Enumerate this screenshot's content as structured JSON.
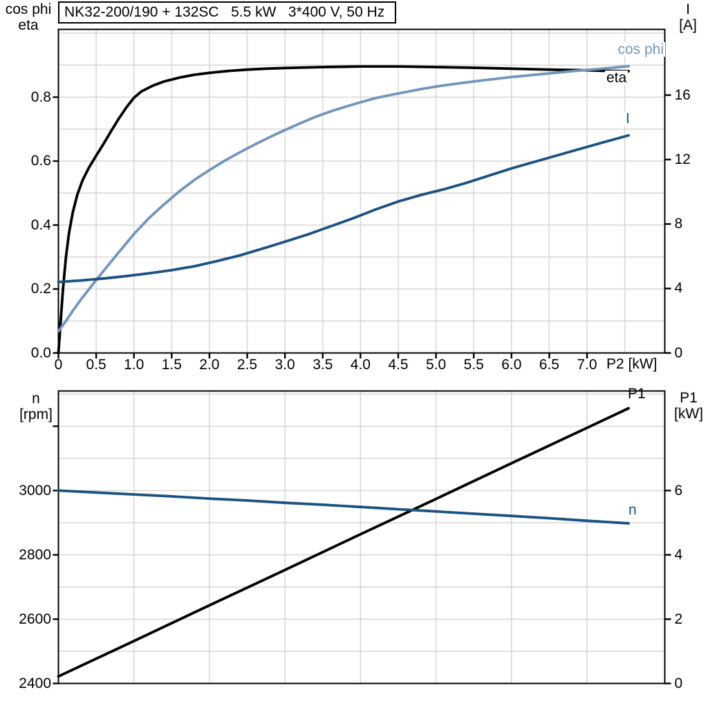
{
  "colors": {
    "curve_black": "#000000",
    "curve_light_blue": "#7495ba",
    "curve_dark_blue": "#1b5282",
    "grid": "#d7d7d7",
    "axis": "#000000",
    "background": "#ffffff"
  },
  "chart_data": [
    {
      "id": "upper",
      "type": "line",
      "title": "NK32-200/190 + 132SC   5.5 kW   3*400 V, 50 Hz",
      "x_axis": {
        "label": "P2 [kW]",
        "min": 0,
        "max": 8.03,
        "grid_step": 0.5,
        "grid_max": 7.5,
        "ticks": [
          {
            "v": 0,
            "label": "0"
          },
          {
            "v": 0.5,
            "label": "0.5"
          },
          {
            "v": 1,
            "label": "1.0"
          },
          {
            "v": 1.5,
            "label": "1.5"
          },
          {
            "v": 2,
            "label": "2.0"
          },
          {
            "v": 2.5,
            "label": "2.5"
          },
          {
            "v": 3,
            "label": "3.0"
          },
          {
            "v": 3.5,
            "label": "3.5"
          },
          {
            "v": 4,
            "label": "4.0"
          },
          {
            "v": 4.5,
            "label": "4.5"
          },
          {
            "v": 5,
            "label": "5.0"
          },
          {
            "v": 5.5,
            "label": "5.5"
          },
          {
            "v": 6,
            "label": "6.0"
          },
          {
            "v": 6.5,
            "label": "6.5"
          },
          {
            "v": 7,
            "label": "7.0"
          }
        ]
      },
      "left_axis": {
        "label1": "cos phi",
        "label2": "eta",
        "min": 0,
        "max": 1.0119,
        "grid_step": 0.1,
        "grid_max": 1.0,
        "ticks": [
          {
            "v": 0,
            "label": "0.0"
          },
          {
            "v": 0.2,
            "label": "0.2"
          },
          {
            "v": 0.4,
            "label": "0.4"
          },
          {
            "v": 0.6,
            "label": "0.6"
          },
          {
            "v": 0.8,
            "label": "0.8"
          }
        ]
      },
      "right_axis": {
        "label1": "I",
        "label2": "[A]",
        "min": 0,
        "max": 20.075,
        "ticks": [
          {
            "v": 0,
            "label": "0"
          },
          {
            "v": 4,
            "label": "4"
          },
          {
            "v": 8,
            "label": "8"
          },
          {
            "v": 12,
            "label": "12"
          },
          {
            "v": 16,
            "label": "16"
          }
        ]
      },
      "series": [
        {
          "name": "eta",
          "label": "eta",
          "axis": "left",
          "color": "#000000",
          "points": [
            [
              0,
              0
            ],
            [
              0.03,
              0.1
            ],
            [
              0.06,
              0.2
            ],
            [
              0.1,
              0.3
            ],
            [
              0.14,
              0.375
            ],
            [
              0.19,
              0.44
            ],
            [
              0.25,
              0.495
            ],
            [
              0.32,
              0.54
            ],
            [
              0.4,
              0.578
            ],
            [
              0.5,
              0.617
            ],
            [
              0.6,
              0.655
            ],
            [
              0.7,
              0.695
            ],
            [
              0.8,
              0.733
            ],
            [
              0.9,
              0.768
            ],
            [
              1,
              0.798
            ],
            [
              1.1,
              0.818
            ],
            [
              1.25,
              0.836
            ],
            [
              1.4,
              0.849
            ],
            [
              1.6,
              0.861
            ],
            [
              1.8,
              0.87
            ],
            [
              2,
              0.876
            ],
            [
              2.25,
              0.882
            ],
            [
              2.5,
              0.886
            ],
            [
              2.75,
              0.889
            ],
            [
              3,
              0.891
            ],
            [
              3.5,
              0.894
            ],
            [
              4,
              0.896
            ],
            [
              4.5,
              0.896
            ],
            [
              5,
              0.894
            ],
            [
              5.5,
              0.892
            ],
            [
              6,
              0.889
            ],
            [
              6.5,
              0.886
            ],
            [
              7,
              0.884
            ],
            [
              7.3,
              0.882
            ],
            [
              7.55,
              0.881
            ]
          ]
        },
        {
          "name": "cos_phi",
          "label": "cos phi",
          "axis": "left",
          "color": "#7495ba",
          "points": [
            [
              0,
              0.068
            ],
            [
              0.1,
              0.1
            ],
            [
              0.2,
              0.135
            ],
            [
              0.3,
              0.168
            ],
            [
              0.4,
              0.198
            ],
            [
              0.5,
              0.228
            ],
            [
              0.65,
              0.272
            ],
            [
              0.8,
              0.315
            ],
            [
              1,
              0.372
            ],
            [
              1.2,
              0.422
            ],
            [
              1.4,
              0.465
            ],
            [
              1.6,
              0.505
            ],
            [
              1.8,
              0.541
            ],
            [
              2,
              0.572
            ],
            [
              2.2,
              0.601
            ],
            [
              2.4,
              0.627
            ],
            [
              2.6,
              0.652
            ],
            [
              2.8,
              0.675
            ],
            [
              3,
              0.697
            ],
            [
              3.2,
              0.718
            ],
            [
              3.4,
              0.738
            ],
            [
              3.6,
              0.755
            ],
            [
              3.8,
              0.77
            ],
            [
              4,
              0.784
            ],
            [
              4.2,
              0.797
            ],
            [
              4.4,
              0.807
            ],
            [
              4.6,
              0.816
            ],
            [
              4.8,
              0.825
            ],
            [
              5,
              0.833
            ],
            [
              5.3,
              0.843
            ],
            [
              5.6,
              0.852
            ],
            [
              6,
              0.863
            ],
            [
              6.4,
              0.872
            ],
            [
              6.8,
              0.881
            ],
            [
              7.1,
              0.887
            ],
            [
              7.3,
              0.891
            ],
            [
              7.55,
              0.897
            ]
          ]
        },
        {
          "name": "current",
          "label": "I",
          "axis": "right",
          "color": "#1b5282",
          "points": [
            [
              0,
              4.4
            ],
            [
              0.3,
              4.5
            ],
            [
              0.6,
              4.62
            ],
            [
              0.9,
              4.77
            ],
            [
              1.2,
              4.94
            ],
            [
              1.5,
              5.14
            ],
            [
              1.8,
              5.38
            ],
            [
              2.1,
              5.7
            ],
            [
              2.4,
              6.05
            ],
            [
              2.7,
              6.47
            ],
            [
              3,
              6.9
            ],
            [
              3.3,
              7.35
            ],
            [
              3.6,
              7.85
            ],
            [
              3.9,
              8.35
            ],
            [
              4.2,
              8.9
            ],
            [
              4.5,
              9.4
            ],
            [
              4.8,
              9.8
            ],
            [
              5.1,
              10.15
            ],
            [
              5.4,
              10.55
            ],
            [
              5.7,
              11
            ],
            [
              6,
              11.45
            ],
            [
              6.3,
              11.85
            ],
            [
              6.6,
              12.25
            ],
            [
              6.9,
              12.65
            ],
            [
              7.2,
              13.05
            ],
            [
              7.55,
              13.5
            ]
          ]
        }
      ]
    },
    {
      "id": "lower",
      "type": "line",
      "title": "",
      "x_axis": {
        "label": "",
        "min": 0,
        "max": 8.03,
        "grid_step": 1,
        "grid_max": 7,
        "ticks": []
      },
      "left_axis": {
        "label1": "n",
        "label2": "[rpm]",
        "min": 2400,
        "max": 3309.7,
        "grid_step": 100,
        "grid_max": 3300,
        "ticks": [
          {
            "v": 2400,
            "label": "2400"
          },
          {
            "v": 2600,
            "label": "2600"
          },
          {
            "v": 2800,
            "label": "2800"
          },
          {
            "v": 3000,
            "label": "3000"
          },
          {
            "v": 3200,
            "label": ""
          }
        ]
      },
      "right_axis": {
        "label1": "P1",
        "label2": "[kW]",
        "min": 0,
        "max": 9.097,
        "ticks": [
          {
            "v": 0,
            "label": "0"
          },
          {
            "v": 2,
            "label": "2"
          },
          {
            "v": 4,
            "label": "4"
          },
          {
            "v": 6,
            "label": "6"
          }
        ]
      },
      "series": [
        {
          "name": "P1",
          "label": "P1",
          "axis": "right",
          "color": "#000000",
          "points": [
            [
              0,
              0.22
            ],
            [
              1,
              1.32
            ],
            [
              2,
              2.43
            ],
            [
              3,
              3.53
            ],
            [
              4,
              4.64
            ],
            [
              5,
              5.74
            ],
            [
              6,
              6.85
            ],
            [
              7,
              7.95
            ],
            [
              7.55,
              8.56
            ]
          ]
        },
        {
          "name": "n",
          "label": "n",
          "axis": "left",
          "color": "#1b5282",
          "points": [
            [
              0,
              3000
            ],
            [
              0.5,
              2994
            ],
            [
              1,
              2988
            ],
            [
              1.5,
              2982
            ],
            [
              2,
              2975
            ],
            [
              2.5,
              2969
            ],
            [
              3,
              2962
            ],
            [
              3.5,
              2956
            ],
            [
              4,
              2949
            ],
            [
              4.5,
              2942
            ],
            [
              5,
              2935
            ],
            [
              5.5,
              2928
            ],
            [
              6,
              2921
            ],
            [
              6.5,
              2914
            ],
            [
              7,
              2906
            ],
            [
              7.55,
              2898
            ]
          ]
        }
      ]
    }
  ]
}
